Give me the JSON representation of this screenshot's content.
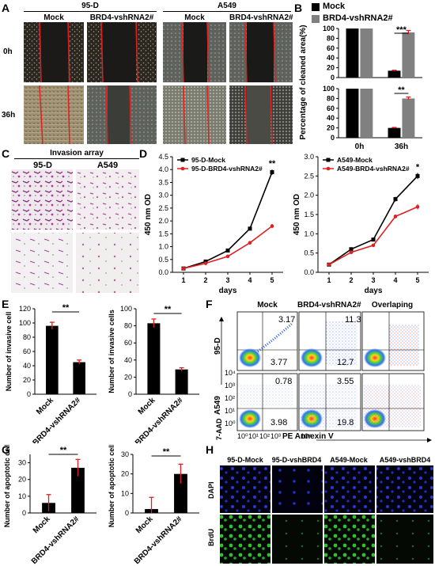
{
  "panels": {
    "A": "A",
    "B": "B",
    "C": "C",
    "D": "D",
    "E": "E",
    "F": "F",
    "G": "G",
    "H": "H"
  },
  "panelA": {
    "groups": [
      "95-D",
      "A549"
    ],
    "cols": [
      "Mock",
      "BRD4-vshRNA2#",
      "Mock",
      "BRD4-vshRNA2#"
    ],
    "rows": [
      "0h",
      "36h"
    ]
  },
  "panelC": {
    "title": "Invasion array",
    "cols": [
      "95-D",
      "A549"
    ]
  },
  "panelF": {
    "cols": [
      "Mock",
      "BRD4-vshRNA2#",
      "Overlaping"
    ],
    "rows": [
      "95-D",
      "A549"
    ],
    "xlabel": "PE Annexin V",
    "ylabel": "7-AAD",
    "values": {
      "d_mock_ur": "3.17",
      "d_mock_lr": "3.77",
      "d_brd_ur": "11.3",
      "d_brd_lr": "12.7",
      "a_mock_ur": "0.78",
      "a_mock_lr": "3.98",
      "a_brd_ur": "3.55",
      "a_brd_lr": "19.8"
    },
    "ticks_y": [
      "10⁴",
      "10³",
      "10²",
      "10¹",
      "10⁰"
    ],
    "ticks_x": [
      "10⁰",
      "10¹",
      "10²",
      "10³",
      "10⁴"
    ]
  },
  "panelH": {
    "cols": [
      "95-D-Mock",
      "95-D-vshBRD4",
      "A549-Mock",
      "A549-vshBRD4"
    ],
    "rows": [
      "DAPI",
      "BrdU"
    ]
  },
  "chart_data": [
    {
      "id": "B-0h",
      "type": "bar",
      "categories": [
        "0h",
        "36h"
      ],
      "series": [
        {
          "name": "Mock",
          "values": [
            100,
            14
          ]
        },
        {
          "name": "BRD4-vshRNA2#",
          "values": [
            100,
            92
          ]
        }
      ],
      "errors": [
        [
          0,
          1
        ],
        [
          0,
          4
        ]
      ],
      "ylabel": "Percentage of cleaned area(%)",
      "ylim": [
        0,
        100
      ],
      "yticks": [
        "0",
        "20",
        "40",
        "60",
        "80",
        "100"
      ],
      "annotation": "***",
      "legend": [
        "Mock",
        "BRD4-vshRNA2#"
      ]
    },
    {
      "id": "B-36h",
      "type": "bar",
      "categories": [
        "0h",
        "36h"
      ],
      "series": [
        {
          "name": "Mock",
          "values": [
            100,
            20
          ]
        },
        {
          "name": "BRD4-vshRNA2#",
          "values": [
            100,
            80
          ]
        }
      ],
      "errors": [
        [
          0,
          1
        ],
        [
          0,
          3
        ]
      ],
      "ylim": [
        0,
        100
      ],
      "yticks": [
        "0",
        "20",
        "40",
        "60",
        "80",
        "100"
      ],
      "annotation": "**"
    },
    {
      "id": "D-95D",
      "type": "line",
      "x": [
        1,
        2,
        3,
        4,
        5
      ],
      "series": [
        {
          "name": "95-D-Mock",
          "values": [
            0.15,
            0.42,
            0.85,
            1.7,
            3.9
          ]
        },
        {
          "name": "95-D-BRD4-vshRNA2#",
          "values": [
            0.15,
            0.35,
            0.62,
            1.15,
            1.8
          ]
        }
      ],
      "errors": [
        [
          0.02,
          0.03,
          0.04,
          0.07,
          0.1
        ],
        [
          0.02,
          0.03,
          0.04,
          0.05,
          0.08
        ]
      ],
      "xlabel": "days",
      "ylabel": "450 nm OD",
      "ylim": [
        0,
        4.5
      ],
      "yticks": [
        "0.0",
        "0.5",
        "1.0",
        "1.5",
        "2.0",
        "2.5",
        "3.0",
        "3.5",
        "4.0",
        "4.5"
      ],
      "xticks": [
        "1",
        "2",
        "3",
        "4",
        "5"
      ],
      "annotation": "**",
      "legend": [
        "95-D-Mock",
        "95-D-BRD4-vshRNA2#"
      ]
    },
    {
      "id": "D-A549",
      "type": "line",
      "x": [
        1,
        2,
        3,
        4,
        5
      ],
      "series": [
        {
          "name": "A549-Mock",
          "values": [
            0.2,
            0.6,
            0.85,
            1.9,
            2.5
          ]
        },
        {
          "name": "A549-BRD4-vshRNA2#",
          "values": [
            0.2,
            0.52,
            0.7,
            1.45,
            1.7
          ]
        }
      ],
      "errors": [
        [
          0.02,
          0.03,
          0.03,
          0.06,
          0.08
        ],
        [
          0.02,
          0.03,
          0.03,
          0.05,
          0.07
        ]
      ],
      "xlabel": "days",
      "ylabel": "450 nm OD",
      "ylim": [
        0,
        3.0
      ],
      "yticks": [
        "0.0",
        "0.5",
        "1.0",
        "1.5",
        "2.0",
        "2.5",
        "3.0"
      ],
      "xticks": [
        "1",
        "2",
        "3",
        "4",
        "5"
      ],
      "annotation": "*",
      "legend": [
        "A549-Mock",
        "A549-BRD4-vshRNA2#"
      ]
    },
    {
      "id": "E-95D",
      "type": "bar",
      "categories": [
        "Mock",
        "BRD4-vshRNA2#"
      ],
      "values": [
        96,
        45
      ],
      "errors": [
        5,
        3
      ],
      "ylabel": "Number of invasive cell",
      "ylim": [
        0,
        120
      ],
      "yticks": [
        "0",
        "20",
        "40",
        "60",
        "80",
        "100",
        "120"
      ],
      "annotation": "**"
    },
    {
      "id": "E-A549",
      "type": "bar",
      "categories": [
        "Mock",
        "BRD4-vshRNA2#"
      ],
      "values": [
        83,
        29
      ],
      "errors": [
        5,
        2
      ],
      "ylabel": "Number of invasive cells",
      "ylim": [
        0,
        100
      ],
      "yticks": [
        "0",
        "20",
        "40",
        "60",
        "80",
        "100"
      ],
      "annotation": "**"
    },
    {
      "id": "G-95D",
      "type": "bar",
      "categories": [
        "Mock",
        "BRD4-vshRNA2#"
      ],
      "values": [
        6,
        27
      ],
      "errors": [
        5,
        5
      ],
      "ylabel": "Number of apoptotic cells",
      "ylim": [
        0,
        35
      ],
      "yticks": [
        "0",
        "10",
        "20",
        "30"
      ],
      "annotation": "**"
    },
    {
      "id": "G-A549",
      "type": "bar",
      "categories": [
        "Mock",
        "BRD4-vshRNA2#"
      ],
      "values": [
        2,
        20
      ],
      "errors": [
        6,
        5
      ],
      "ylabel": "Number of apoptotic cells",
      "ylim": [
        0,
        30
      ],
      "yticks": [
        "0",
        "10",
        "20",
        "30"
      ],
      "annotation": "**"
    }
  ],
  "colors": {
    "mock": "#000000",
    "brd4": "#808080",
    "red_line": "#e02020",
    "bar_black": "#000000",
    "err_red": "#e02020"
  }
}
